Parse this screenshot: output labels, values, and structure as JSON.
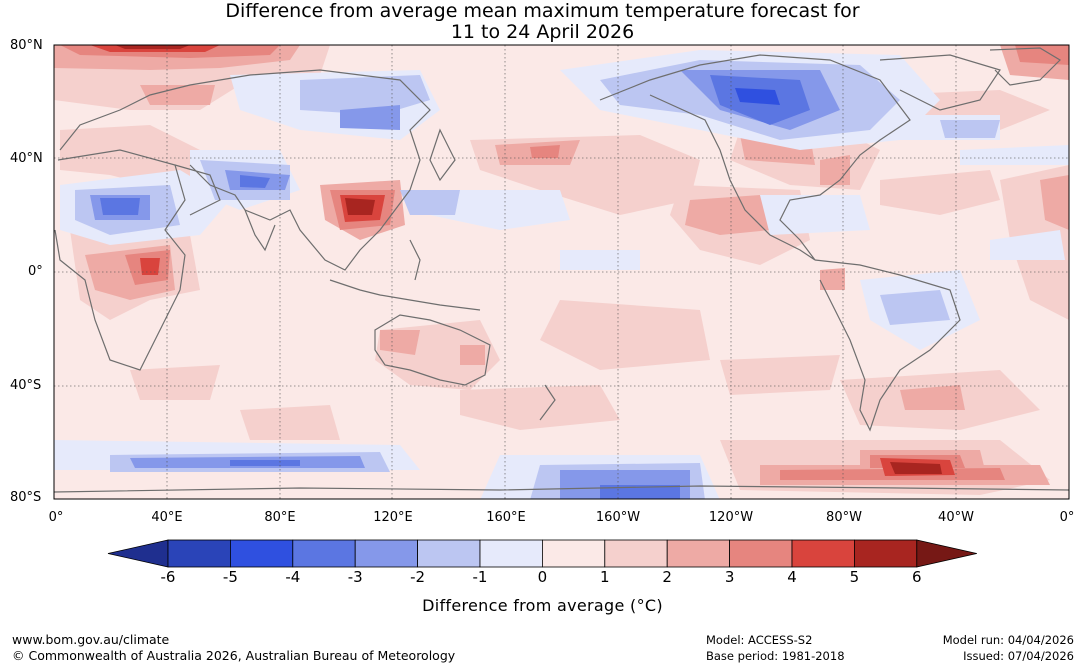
{
  "title": {
    "line1": "Difference from average mean maximum temperature forecast for",
    "line2": "11 to 24 April 2026"
  },
  "map": {
    "lat_labels": [
      "80°N",
      "40°N",
      "0°",
      "40°S",
      "80°S"
    ],
    "lon_labels": [
      "0°",
      "40°E",
      "80°E",
      "120°E",
      "160°E",
      "160°W",
      "120°W",
      "80°W",
      "40°W",
      "0°"
    ]
  },
  "colorbar": {
    "ticks": [
      "-6",
      "-5",
      "-4",
      "-3",
      "-2",
      "-1",
      "0",
      "1",
      "2",
      "3",
      "4",
      "5",
      "6"
    ],
    "colors": [
      "#1f2f8f",
      "#2a44b8",
      "#2f50e0",
      "#5b76e2",
      "#8598ea",
      "#bcc6f2",
      "#e6eafb",
      "#fbe9e7",
      "#f5d0cd",
      "#eeaaa5",
      "#e6857f",
      "#d9443d",
      "#a82520",
      "#761815"
    ],
    "label": "Difference from average (°C)"
  },
  "footer": {
    "website": "www.bom.gov.au/climate",
    "copyright": "© Commonwealth of Australia 2026, Australian Bureau of Meteorology",
    "model": "Model: ACCESS-S2",
    "base_period": "Base period: 1981-2018",
    "model_run": "Model run: 04/04/2026",
    "issued": "Issued: 07/04/2026"
  }
}
